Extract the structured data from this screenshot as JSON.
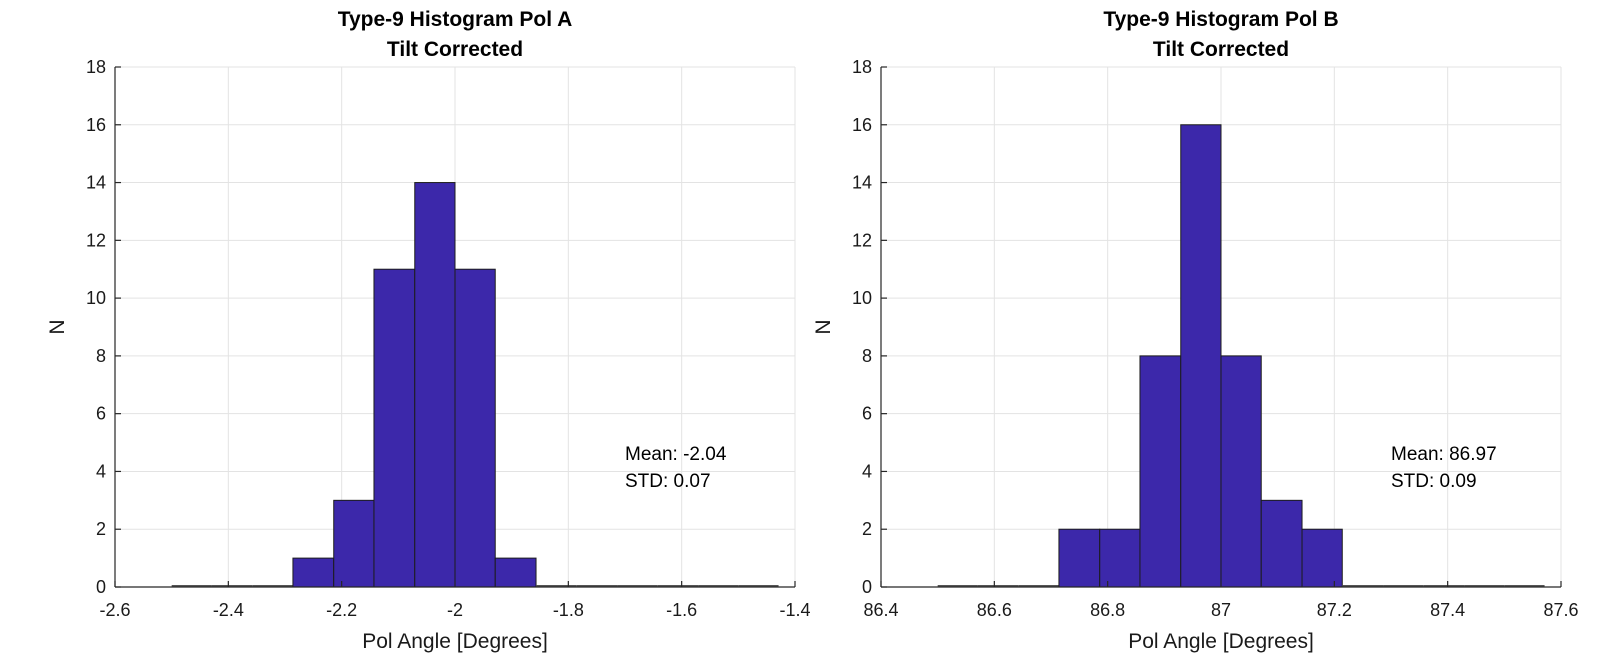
{
  "chart_data": [
    {
      "type": "bar",
      "title": [
        "Type-9 Histogram Pol A",
        "Tilt Corrected"
      ],
      "xlabel": "Pol Angle [Degrees]",
      "ylabel": "N",
      "xlim": [
        -2.6,
        -1.4
      ],
      "ylim": [
        0,
        18
      ],
      "xticks": [
        -2.6,
        -2.4,
        -2.2,
        -2,
        -1.8,
        -1.6,
        -1.4
      ],
      "xtick_labels": [
        "-2.6",
        "-2.4",
        "-2.2",
        "-2",
        "-1.8",
        "-1.6",
        "-1.4"
      ],
      "yticks": [
        0,
        2,
        4,
        6,
        8,
        10,
        12,
        14,
        16,
        18
      ],
      "ytick_labels": [
        "0",
        "2",
        "4",
        "6",
        "8",
        "10",
        "12",
        "14",
        "16",
        "18"
      ],
      "grid": true,
      "bar_color": "#3c28aa",
      "bin_edges": [
        -2.5,
        -2.429,
        -2.357,
        -2.286,
        -2.214,
        -2.143,
        -2.071,
        -2.0,
        -1.929,
        -1.857,
        -1.786,
        -1.714,
        -1.643,
        -1.571,
        -1.5,
        -1.429
      ],
      "counts": [
        0,
        0,
        0,
        1,
        3,
        11,
        14,
        11,
        1,
        0,
        0,
        0,
        0,
        0,
        0
      ],
      "annotation": {
        "x": -1.7,
        "y": 4.4,
        "lines": [
          "Mean: -2.04",
          "STD: 0.07"
        ]
      }
    },
    {
      "type": "bar",
      "title": [
        "Type-9 Histogram Pol B",
        "Tilt Corrected"
      ],
      "xlabel": "Pol Angle [Degrees]",
      "ylabel": "N",
      "xlim": [
        86.4,
        87.6
      ],
      "ylim": [
        0,
        18
      ],
      "xticks": [
        86.4,
        86.6,
        86.8,
        87,
        87.2,
        87.4,
        87.6
      ],
      "xtick_labels": [
        "86.4",
        "86.6",
        "86.8",
        "87",
        "87.2",
        "87.4",
        "87.6"
      ],
      "yticks": [
        0,
        2,
        4,
        6,
        8,
        10,
        12,
        14,
        16,
        18
      ],
      "ytick_labels": [
        "0",
        "2",
        "4",
        "6",
        "8",
        "10",
        "12",
        "14",
        "16",
        "18"
      ],
      "grid": true,
      "bar_color": "#3c28aa",
      "bin_edges": [
        86.5,
        86.571,
        86.643,
        86.714,
        86.786,
        86.857,
        86.929,
        87.0,
        87.071,
        87.143,
        87.214,
        87.286,
        87.357,
        87.429,
        87.5,
        87.571
      ],
      "counts": [
        0,
        0,
        0,
        2,
        2,
        8,
        16,
        8,
        3,
        2,
        0,
        0,
        0,
        0,
        0
      ],
      "annotation": {
        "x": 87.3,
        "y": 4.4,
        "lines": [
          "Mean: 86.97",
          "STD: 0.09"
        ]
      }
    }
  ]
}
